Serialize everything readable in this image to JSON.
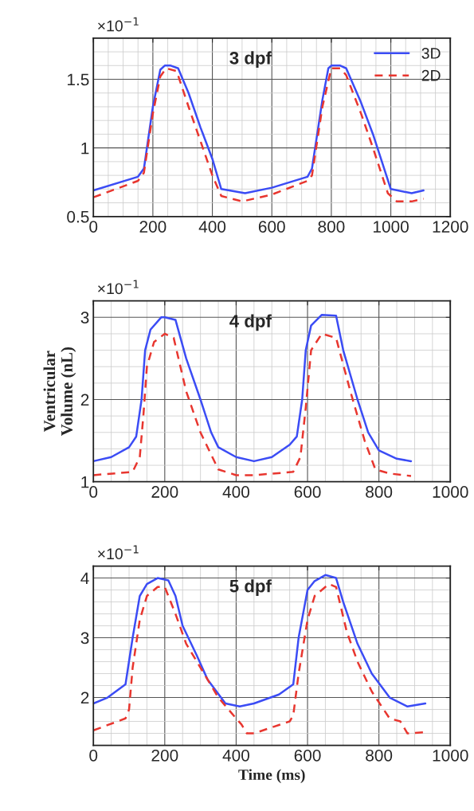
{
  "chart_data": [
    {
      "type": "line",
      "title": "3 dpf",
      "annotations": [
        "×10$^{−1}$"
      ],
      "xlim": [
        0,
        1200
      ],
      "xticks": [
        0,
        200,
        400,
        600,
        800,
        1000,
        1200
      ],
      "ylim": [
        0.5,
        1.8
      ],
      "yticks": [
        0.5,
        1,
        1.5
      ],
      "grid": true,
      "legend": "top right",
      "series": [
        {
          "name": "3D",
          "color": "#3b4cf5",
          "line_style": "solid",
          "x": [
            0,
            150,
            170,
            200,
            225,
            240,
            260,
            285,
            320,
            360,
            400,
            430,
            510,
            600,
            720,
            735,
            770,
            790,
            800,
            830,
            850,
            900,
            940,
            1000,
            1070,
            1110
          ],
          "values": [
            0.69,
            0.79,
            0.85,
            1.3,
            1.57,
            1.6,
            1.6,
            1.58,
            1.4,
            1.15,
            0.92,
            0.7,
            0.67,
            0.71,
            0.79,
            0.85,
            1.35,
            1.58,
            1.6,
            1.6,
            1.58,
            1.33,
            1.1,
            0.7,
            0.67,
            0.69
          ]
        },
        {
          "name": "2D",
          "color": "#e8362f",
          "line_style": "dashed",
          "x": [
            0,
            150,
            170,
            200,
            225,
            245,
            280,
            320,
            360,
            400,
            430,
            500,
            600,
            720,
            735,
            770,
            800,
            830,
            850,
            900,
            940,
            990,
            1020,
            1070,
            1110
          ],
          "values": [
            0.64,
            0.76,
            0.82,
            1.25,
            1.52,
            1.58,
            1.56,
            1.3,
            1.05,
            0.8,
            0.65,
            0.61,
            0.66,
            0.76,
            0.8,
            1.3,
            1.58,
            1.58,
            1.53,
            1.25,
            1.0,
            0.67,
            0.61,
            0.61,
            0.63
          ]
        }
      ]
    },
    {
      "type": "line",
      "title": "4 dpf",
      "ylabel": "Ventricular\nVolume (nL)",
      "annotations": [
        "×10$^{−1}$"
      ],
      "xlim": [
        0,
        1000
      ],
      "xticks": [
        0,
        200,
        400,
        600,
        800,
        1000
      ],
      "ylim": [
        1,
        3.2
      ],
      "yticks": [
        1,
        2,
        3
      ],
      "grid": true,
      "series": [
        {
          "color": "#3b4cf5",
          "line_style": "solid",
          "x": [
            0,
            50,
            100,
            120,
            135,
            145,
            160,
            190,
            200,
            230,
            260,
            300,
            330,
            350,
            400,
            450,
            500,
            550,
            570,
            585,
            595,
            610,
            640,
            680,
            700,
            740,
            770,
            800,
            850,
            890
          ],
          "values": [
            1.25,
            1.3,
            1.42,
            1.55,
            2.0,
            2.6,
            2.85,
            3.0,
            3.0,
            2.97,
            2.5,
            2.0,
            1.6,
            1.42,
            1.3,
            1.25,
            1.3,
            1.45,
            1.55,
            2.0,
            2.6,
            2.9,
            3.03,
            3.02,
            2.6,
            2.0,
            1.6,
            1.38,
            1.28,
            1.25
          ]
        },
        {
          "color": "#e8362f",
          "line_style": "dashed",
          "x": [
            0,
            110,
            130,
            140,
            150,
            170,
            200,
            225,
            260,
            300,
            350,
            400,
            450,
            560,
            580,
            595,
            610,
            640,
            680,
            720,
            760,
            790,
            830,
            890
          ],
          "values": [
            1.08,
            1.12,
            1.3,
            1.8,
            2.4,
            2.7,
            2.8,
            2.75,
            2.1,
            1.6,
            1.15,
            1.08,
            1.08,
            1.12,
            1.3,
            1.9,
            2.6,
            2.8,
            2.75,
            2.1,
            1.5,
            1.15,
            1.1,
            1.07
          ]
        }
      ]
    },
    {
      "type": "line",
      "title": "5 dpf",
      "xlabel": "Time (ms)",
      "annotations": [
        "×10$^{−1}$"
      ],
      "xlim": [
        0,
        1000
      ],
      "xticks": [
        0,
        200,
        400,
        600,
        800,
        1000
      ],
      "ylim": [
        1.2,
        4.2
      ],
      "yticks": [
        2,
        3,
        4
      ],
      "grid": true,
      "series": [
        {
          "color": "#3b4cf5",
          "line_style": "solid",
          "x": [
            0,
            40,
            90,
            110,
            130,
            150,
            180,
            210,
            230,
            250,
            290,
            320,
            370,
            410,
            450,
            520,
            560,
            575,
            600,
            620,
            650,
            680,
            700,
            740,
            780,
            830,
            880,
            930
          ],
          "values": [
            1.9,
            2.0,
            2.22,
            3.0,
            3.7,
            3.9,
            4.0,
            3.96,
            3.7,
            3.2,
            2.7,
            2.3,
            1.9,
            1.85,
            1.9,
            2.05,
            2.22,
            3.0,
            3.8,
            3.95,
            4.05,
            4.0,
            3.6,
            2.9,
            2.4,
            2.0,
            1.85,
            1.9
          ]
        },
        {
          "color": "#e8362f",
          "line_style": "dashed",
          "x": [
            0,
            90,
            100,
            110,
            130,
            150,
            180,
            200,
            230,
            260,
            300,
            350,
            400,
            415,
            430,
            450,
            550,
            560,
            575,
            600,
            620,
            660,
            680,
            710,
            740,
            780,
            830,
            860,
            880,
            930
          ],
          "values": [
            1.45,
            1.65,
            1.8,
            2.5,
            3.3,
            3.7,
            3.85,
            3.85,
            3.4,
            2.9,
            2.5,
            2.0,
            1.65,
            1.55,
            1.4,
            1.4,
            1.6,
            1.7,
            2.4,
            3.3,
            3.7,
            3.9,
            3.85,
            3.1,
            2.6,
            2.1,
            1.65,
            1.6,
            1.4,
            1.42
          ]
        }
      ]
    }
  ]
}
